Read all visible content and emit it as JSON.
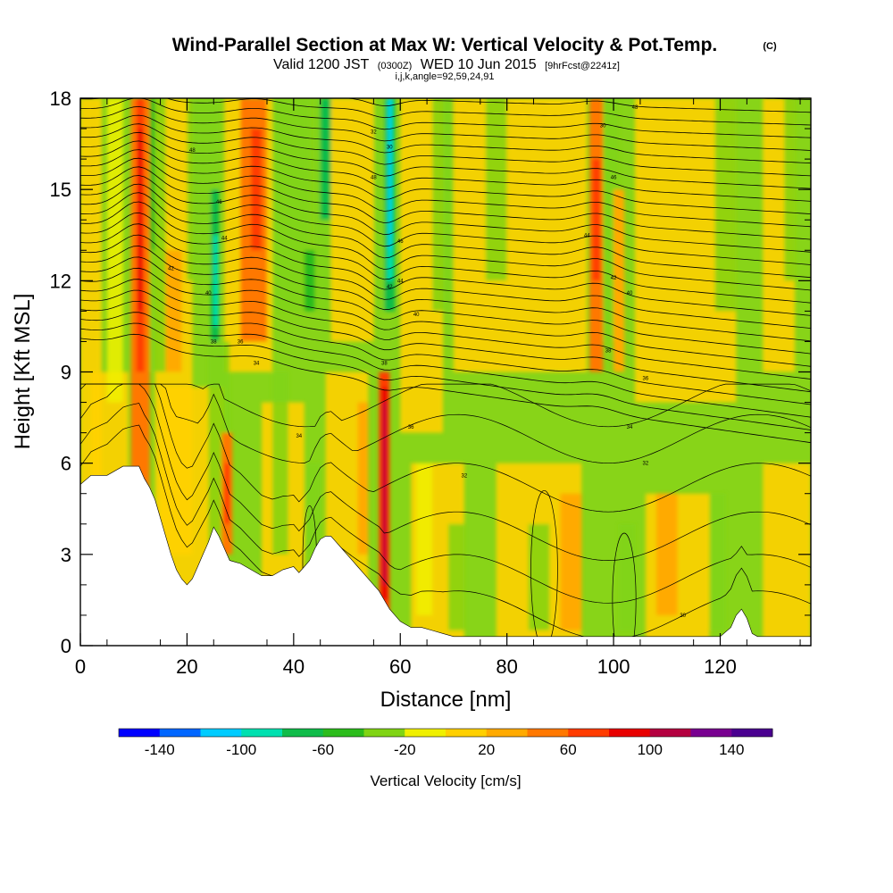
{
  "header": {
    "title": "Wind-Parallel Section at Max W: Vertical Velocity & Pot.Temp.",
    "copyright": "(C)",
    "valid_prefix": "Valid 1200 JST",
    "valid_utc": "(0300Z)",
    "valid_date": "WED 10 Jun 2015",
    "forecast": "[9hrFcst@2241z]",
    "grid_info": "i,j,k,angle=92,59,24,91"
  },
  "chart_data": {
    "type": "heatmap",
    "title": "Wind-Parallel Section at Max W: Vertical Velocity & Pot.Temp.",
    "xlabel": "Distance [nm]",
    "ylabel": "Height [Kft MSL]",
    "xlim": [
      0,
      137
    ],
    "ylim": [
      0,
      18
    ],
    "x_ticks": [
      0,
      20,
      40,
      60,
      80,
      100,
      120
    ],
    "y_ticks": [
      0,
      3,
      6,
      9,
      12,
      15,
      18
    ],
    "x_tick_labels": [
      "0",
      "20",
      "40",
      "60",
      "80",
      "100",
      "120"
    ],
    "y_tick_labels": [
      "0",
      "3",
      "6",
      "9",
      "12",
      "15",
      "18"
    ],
    "grid": false,
    "colorbar": {
      "label": "Vertical Velocity [cm/s]",
      "bounds": [
        -160,
        160
      ],
      "step": 20,
      "tick_values": [
        -140,
        -100,
        -60,
        -20,
        20,
        60,
        100,
        140
      ],
      "tick_labels": [
        "-140",
        "-100",
        "-60",
        "-20",
        "20",
        "60",
        "100",
        "140"
      ],
      "colors": [
        "#0000ff",
        "#0066ff",
        "#00ccff",
        "#00e0b0",
        "#10bc4a",
        "#2cbc1c",
        "#80d414",
        "#f0f000",
        "#ffd000",
        "#ffaa00",
        "#ff7800",
        "#ff3c00",
        "#e80000",
        "#b40040",
        "#780090",
        "#4a0090"
      ]
    },
    "background_color": "#88d418",
    "updraft_bands": [
      {
        "x": 11,
        "y_start": 4.5,
        "y_end": 18,
        "peak_w": 100
      },
      {
        "x": 33,
        "y_start": 9,
        "y_end": 18,
        "peak_w": 60
      },
      {
        "x": 57,
        "y_start": 1,
        "y_end": 9,
        "peak_w": 130
      },
      {
        "x": 97,
        "y_start": 9,
        "y_end": 18,
        "peak_w": 60
      },
      {
        "x": 27,
        "y_start": 3,
        "y_end": 7,
        "peak_w": 80
      }
    ],
    "downdraft_bands": [
      {
        "x": 58,
        "y_start": 11,
        "y_end": 18,
        "peak_w": -100
      },
      {
        "x": 25,
        "y_start": 10,
        "y_end": 14,
        "peak_w": -60
      },
      {
        "x": 45,
        "y_start": 12,
        "y_end": 18,
        "peak_w": -60
      }
    ],
    "terrain_profile": {
      "x": [
        0,
        2,
        5,
        8,
        11,
        12,
        13,
        14,
        15,
        16,
        17,
        18,
        19,
        20,
        21,
        22,
        23,
        24,
        25,
        26,
        27,
        28,
        30,
        32,
        34,
        36,
        38,
        40,
        41,
        42,
        43,
        44,
        45,
        46,
        47,
        48,
        49,
        50,
        51,
        52,
        53,
        54,
        55,
        56,
        57,
        58,
        59,
        60,
        61,
        62,
        64,
        66,
        68,
        70,
        72,
        75,
        80,
        85,
        90,
        95,
        100,
        105,
        110,
        115,
        120,
        122,
        123,
        124,
        125,
        126,
        127,
        130,
        133,
        137
      ],
      "height": [
        5.3,
        5.6,
        5.6,
        5.9,
        5.9,
        5.5,
        5.2,
        4.8,
        4.2,
        3.6,
        3.0,
        2.5,
        2.2,
        2.0,
        2.2,
        2.6,
        3.0,
        3.4,
        3.9,
        3.6,
        3.2,
        2.8,
        2.7,
        2.5,
        2.3,
        2.3,
        2.5,
        2.6,
        2.4,
        2.6,
        2.8,
        3.2,
        3.5,
        3.6,
        3.6,
        3.4,
        3.2,
        3.0,
        2.8,
        2.6,
        2.4,
        2.2,
        2.0,
        1.8,
        1.5,
        1.2,
        1.0,
        0.8,
        0.7,
        0.6,
        0.6,
        0.5,
        0.4,
        0.3,
        0.3,
        0.3,
        0.3,
        0.3,
        0.3,
        0.3,
        0.3,
        0.3,
        0.3,
        0.3,
        0.3,
        0.6,
        1.0,
        1.2,
        0.9,
        0.4,
        0.3,
        0.3,
        0.3,
        0.3
      ]
    },
    "isentrope_labels": [
      "48",
      "46",
      "44",
      "42",
      "40",
      "38",
      "36",
      "34",
      "32",
      "30"
    ]
  }
}
